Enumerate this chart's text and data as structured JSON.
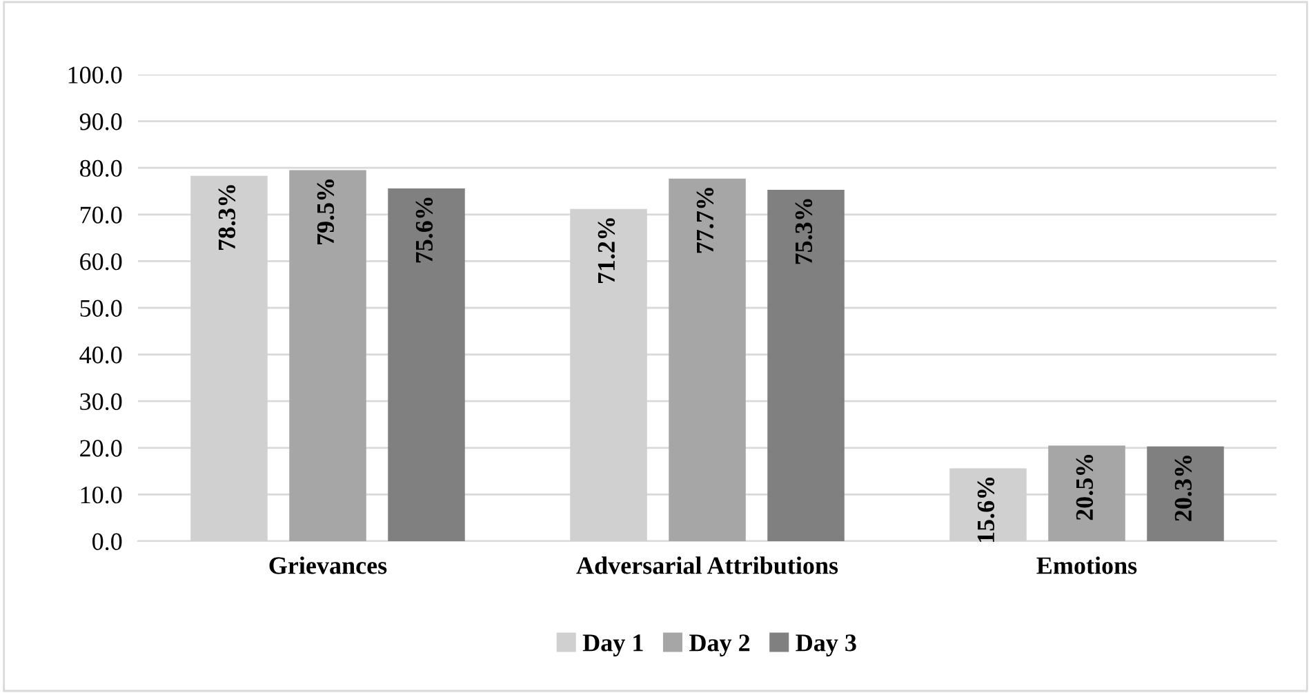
{
  "chart_data": {
    "type": "bar",
    "categories": [
      "Grievances",
      "Adversarial Attributions",
      "Emotions"
    ],
    "series": [
      {
        "name": "Day 1",
        "color": "#d0d0d0",
        "values": [
          78.3,
          71.2,
          15.6
        ],
        "value_labels": [
          "78.3%",
          "71.2%",
          "15.6%"
        ]
      },
      {
        "name": "Day 2",
        "color": "#a6a6a6",
        "values": [
          79.5,
          77.7,
          20.5
        ],
        "value_labels": [
          "79.5%",
          "77.7%",
          "20.5%"
        ]
      },
      {
        "name": "Day 3",
        "color": "#808080",
        "values": [
          75.6,
          75.3,
          20.3
        ],
        "value_labels": [
          "75.6%",
          "75.3%",
          "20.3%"
        ]
      }
    ],
    "ylim": [
      0,
      100
    ],
    "yticks": [
      {
        "value": 0,
        "label": "0.0"
      },
      {
        "value": 10,
        "label": "10.0"
      },
      {
        "value": 20,
        "label": "20.0"
      },
      {
        "value": 30,
        "label": "30.0"
      },
      {
        "value": 40,
        "label": "40.0"
      },
      {
        "value": 50,
        "label": "50.0"
      },
      {
        "value": 60,
        "label": "60.0"
      },
      {
        "value": 70,
        "label": "70.0"
      },
      {
        "value": 80,
        "label": "80.0"
      },
      {
        "value": 90,
        "label": "90.0"
      },
      {
        "value": 100,
        "label": "100.0"
      }
    ],
    "grid": "y",
    "legend": "bottom"
  }
}
